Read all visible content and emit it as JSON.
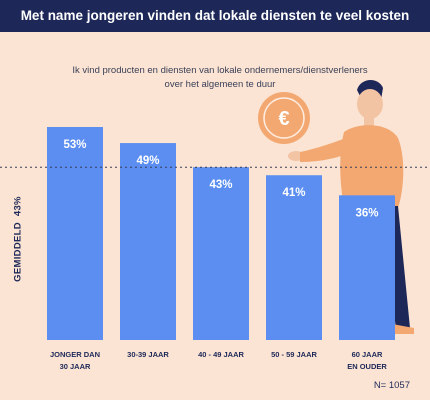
{
  "header": {
    "title": "Met name jongeren vinden dat lokale diensten te veel kosten"
  },
  "subtitle": {
    "line1": "Ik vind producten en diensten van lokale ondernemers/dienstverleners",
    "line2": "over het algemeen te duur"
  },
  "average": {
    "label": "GEMIDDELD",
    "value_text": "43%",
    "value": 43
  },
  "footnote": "N= 1057",
  "colors": {
    "header_bg": "#1d2859",
    "background": "#fbe4d3",
    "bar": "#5b8ef0",
    "coin": "#f3a871",
    "person_shirt": "#f3a871",
    "person_pants": "#1d2859"
  },
  "decorations": {
    "coin_symbol": "€"
  },
  "chart_data": {
    "type": "bar",
    "title": "Ik vind producten en diensten van lokale ondernemers/dienstverleners over het algemeen te duur",
    "categories": [
      [
        "JONGER DAN",
        "30 JAAR"
      ],
      [
        "30-39 JAAR"
      ],
      [
        "40 - 49 JAAR"
      ],
      [
        "50 - 59 JAAR"
      ],
      [
        "60 JAAR",
        "EN OUDER"
      ]
    ],
    "values": [
      53,
      49,
      43,
      41,
      36
    ],
    "value_labels": [
      "53%",
      "49%",
      "43%",
      "41%",
      "36%"
    ],
    "reference_line": 43,
    "ylim": [
      0,
      53
    ],
    "xlabel": "",
    "ylabel": ""
  }
}
